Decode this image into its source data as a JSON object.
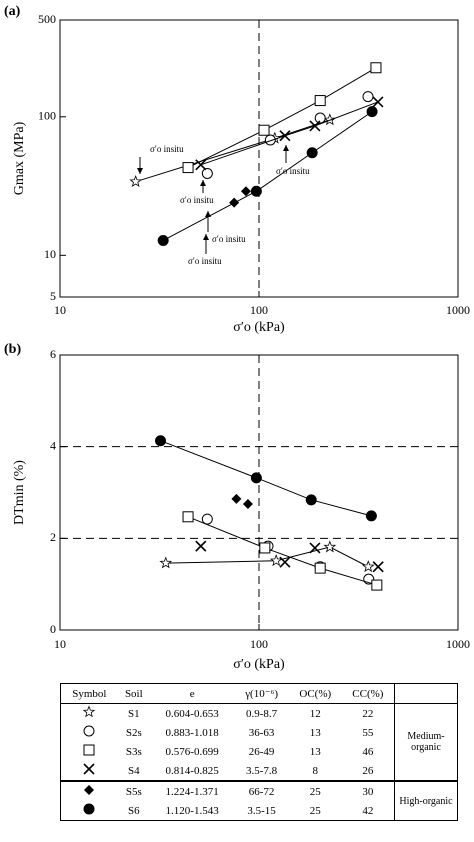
{
  "chart_data": [
    {
      "type": "scatter",
      "label": "(a)",
      "x_label": "σ′o (kPa)",
      "y_label": "Gmax (MPa)",
      "log_x": true,
      "log_y": true,
      "xlim": [
        10,
        1000
      ],
      "ylim": [
        5,
        500
      ],
      "xticks": [
        10,
        100,
        1000
      ],
      "yticks": [
        5,
        10,
        100,
        500
      ],
      "vlines": [
        100
      ],
      "annotations": [
        "σ′o insitu",
        "σ′o insitu",
        "σ′o insitu",
        "σ′o insitu",
        "σ′o insitu"
      ],
      "series": [
        {
          "marker": "star",
          "color": "#000000",
          "line": true,
          "x": [
            24,
            120,
            227
          ],
          "values": [
            34,
            70,
            95
          ]
        },
        {
          "marker": "circle",
          "color": "#000000",
          "line": false,
          "x": [
            55,
            114,
            203,
            353
          ],
          "values": [
            39,
            68,
            98,
            140
          ]
        },
        {
          "marker": "square",
          "color": "#000000",
          "line": true,
          "x": [
            44,
            106,
            203,
            387
          ],
          "values": [
            43,
            80,
            131,
            226
          ]
        },
        {
          "marker": "x",
          "color": "#000000",
          "line": true,
          "x": [
            51,
            135,
            191,
            396
          ],
          "values": [
            45,
            73,
            86,
            128
          ]
        },
        {
          "marker": "diamond",
          "color": "#000000",
          "line": false,
          "x": [
            75,
            86
          ],
          "values": [
            24,
            29
          ]
        },
        {
          "marker": "disc",
          "color": "#000000",
          "line": true,
          "x": [
            33,
            97,
            185,
            370
          ],
          "values": [
            12.8,
            29,
            55,
            109
          ]
        }
      ]
    },
    {
      "type": "scatter",
      "label": "(b)",
      "x_label": "σ′o (kPa)",
      "y_label": "DTmin (%)",
      "log_x": true,
      "log_y": false,
      "xlim": [
        10,
        1000
      ],
      "ylim": [
        0,
        6
      ],
      "xticks": [
        10,
        100,
        1000
      ],
      "yticks": [
        0,
        2,
        4,
        6
      ],
      "vlines": [
        100
      ],
      "hlines": [
        2,
        4
      ],
      "series": [
        {
          "marker": "star",
          "color": "#000000",
          "line": true,
          "x": [
            34,
            122,
            227,
            354
          ],
          "values": [
            1.46,
            1.51,
            1.81,
            1.38
          ]
        },
        {
          "marker": "circle",
          "color": "#000000",
          "line": false,
          "x": [
            55,
            111,
            203,
            356
          ],
          "values": [
            2.42,
            1.83,
            1.38,
            1.11
          ]
        },
        {
          "marker": "square",
          "color": "#000000",
          "line": true,
          "x": [
            44,
            107,
            203,
            391
          ],
          "values": [
            2.47,
            1.79,
            1.35,
            0.98
          ]
        },
        {
          "marker": "x",
          "color": "#000000",
          "line": false,
          "x": [
            51,
            135,
            191,
            397
          ],
          "values": [
            1.83,
            1.48,
            1.79,
            1.38
          ]
        },
        {
          "marker": "diamond",
          "color": "#000000",
          "line": false,
          "x": [
            77,
            88
          ],
          "values": [
            2.86,
            2.75
          ]
        },
        {
          "marker": "disc",
          "color": "#000000",
          "line": true,
          "x": [
            32,
            97,
            183,
            367
          ],
          "values": [
            4.13,
            3.32,
            2.84,
            2.49
          ]
        }
      ]
    }
  ],
  "table": {
    "header": [
      "Symbol",
      "Soil",
      "e",
      "γ(10⁻⁶)",
      "OC(%)",
      "CC(%)"
    ],
    "rows": [
      [
        "S1",
        "0.604-0.653",
        "0.9-8.7",
        12,
        22
      ],
      [
        "S2s",
        "0.883-1.018",
        "36-63",
        13,
        55
      ],
      [
        "S3s",
        "0.576-0.699",
        "26-49",
        13,
        46
      ],
      [
        "S4",
        "0.814-0.825",
        "3.5-7.8",
        8,
        26
      ],
      [
        "S5s",
        "1.224-1.371",
        "66-72",
        25,
        30
      ],
      [
        "S6",
        "1.120-1.543",
        "3.5-15",
        25,
        42
      ]
    ],
    "groups": [
      "Medium-organic",
      "High-organic"
    ]
  }
}
